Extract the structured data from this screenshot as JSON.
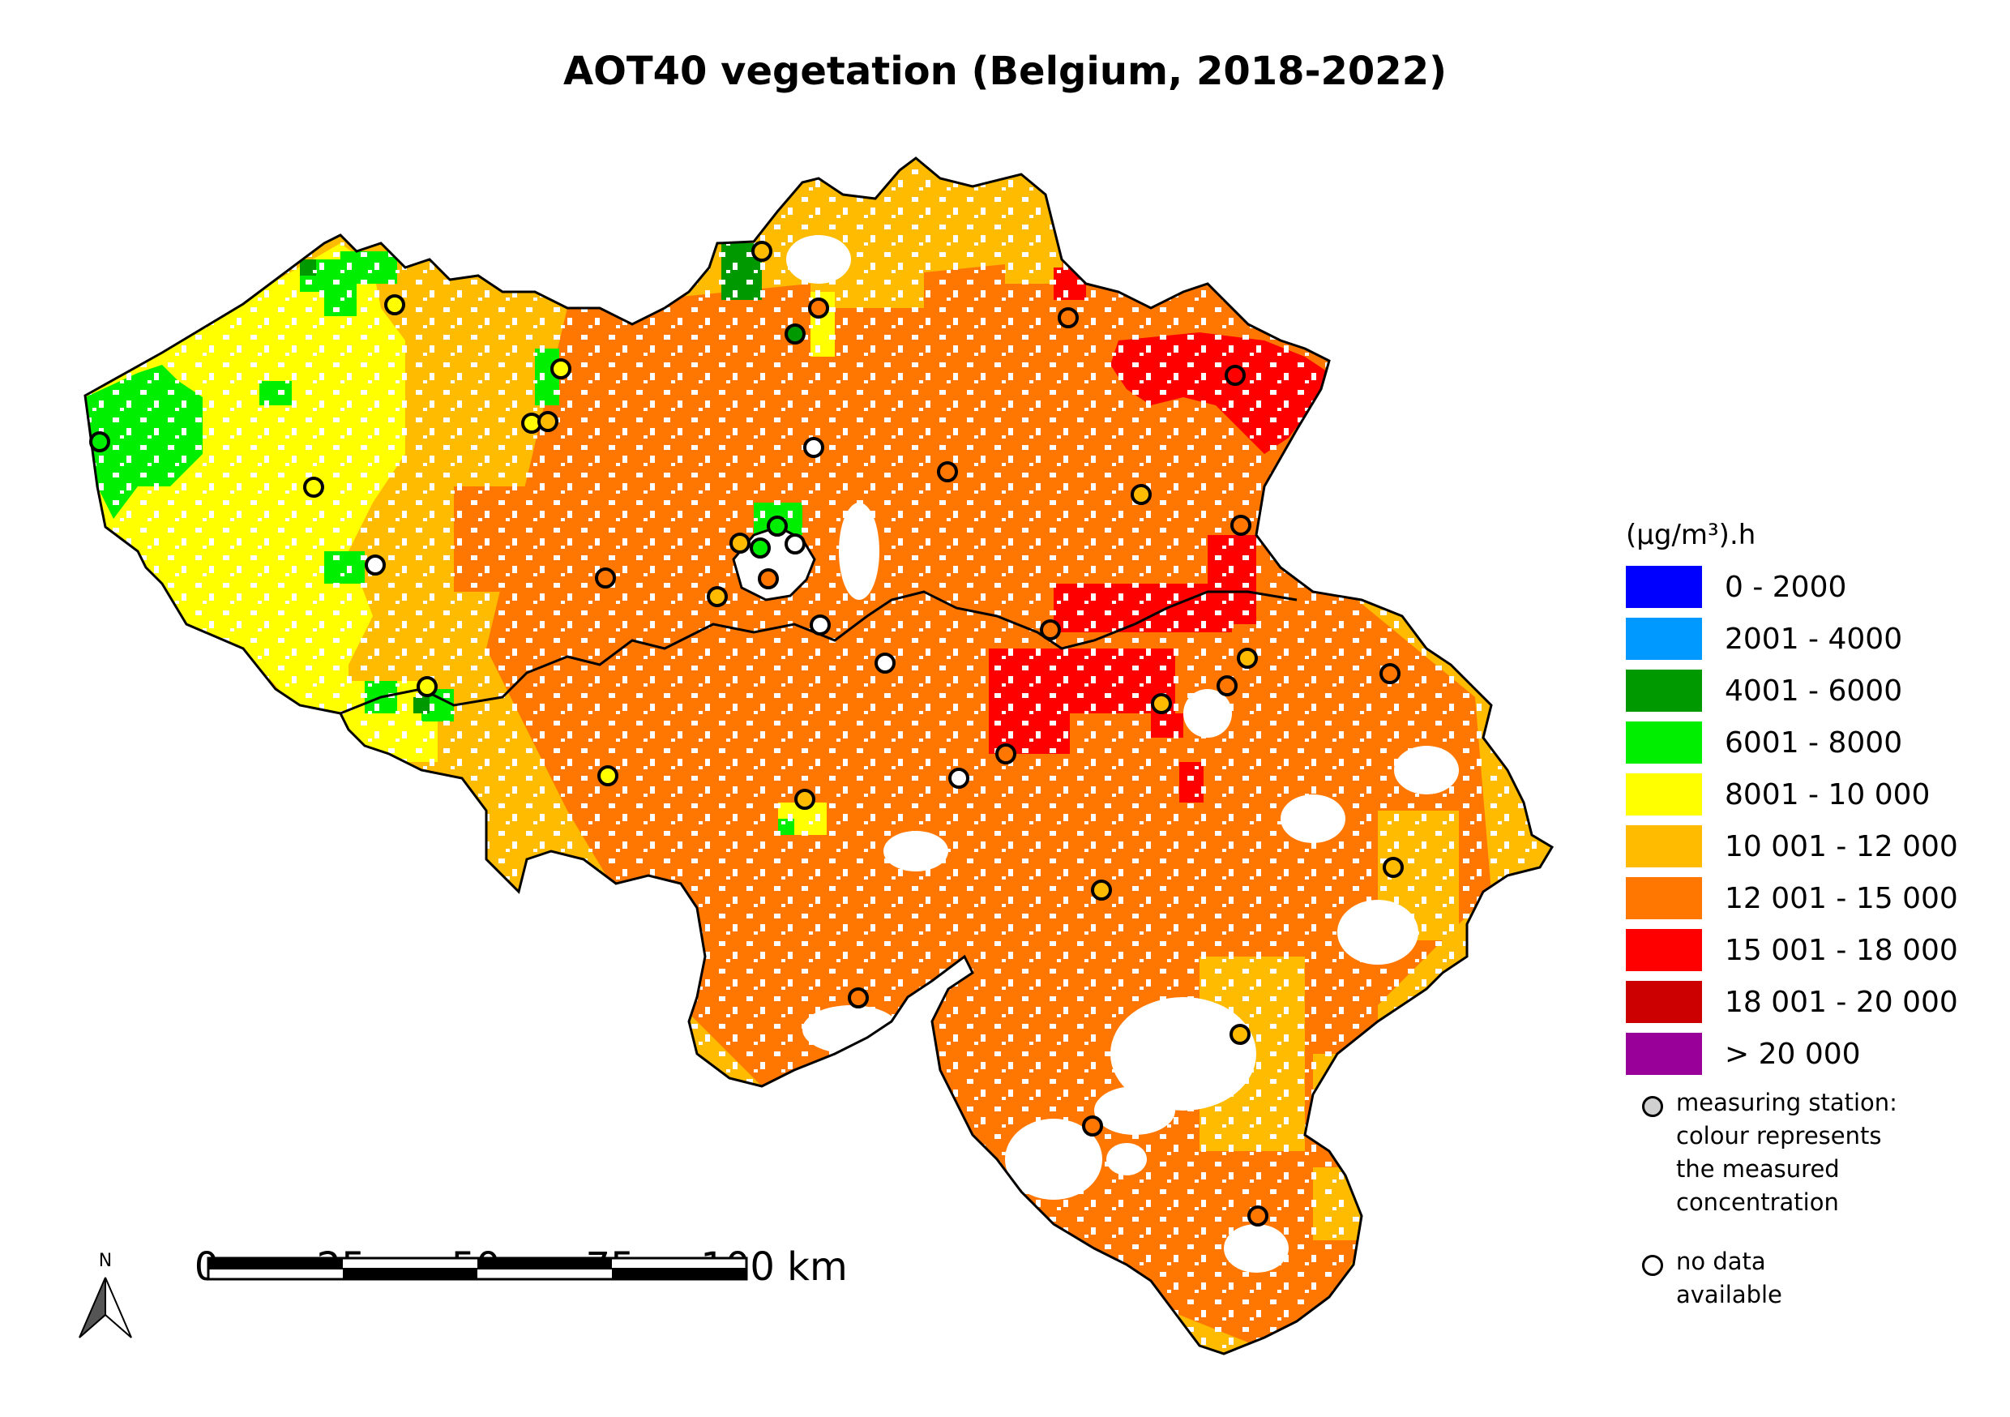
{
  "title": "AOT40 vegetation (Belgium, 2018-2022)",
  "legend": {
    "unit": "(µg/m³).h",
    "classes": [
      {
        "label": "0 - 2000",
        "color": "#0000ff"
      },
      {
        "label": "2001 - 4000",
        "color": "#0099ff"
      },
      {
        "label": "4001 - 6000",
        "color": "#009900"
      },
      {
        "label": "6001 - 8000",
        "color": "#00ee00"
      },
      {
        "label": "8001 - 10 000",
        "color": "#ffff00"
      },
      {
        "label": "10 001 - 12 000",
        "color": "#ffbb00"
      },
      {
        "label": "12 001 - 15 000",
        "color": "#ff7700"
      },
      {
        "label": "15 001 - 18 000",
        "color": "#ff0000"
      },
      {
        "label": "18 001 - 20 000",
        "color": "#cc0000"
      },
      {
        "label": "> 20 000",
        "color": "#990099"
      }
    ],
    "station_note": [
      "measuring station:",
      "colour represents",
      "the measured",
      "concentration"
    ],
    "nodata_note": [
      "no data",
      "available"
    ]
  },
  "scale_bar": {
    "labels": [
      "0",
      "25",
      "50",
      "75",
      "100 km"
    ]
  },
  "north_label": "N"
}
